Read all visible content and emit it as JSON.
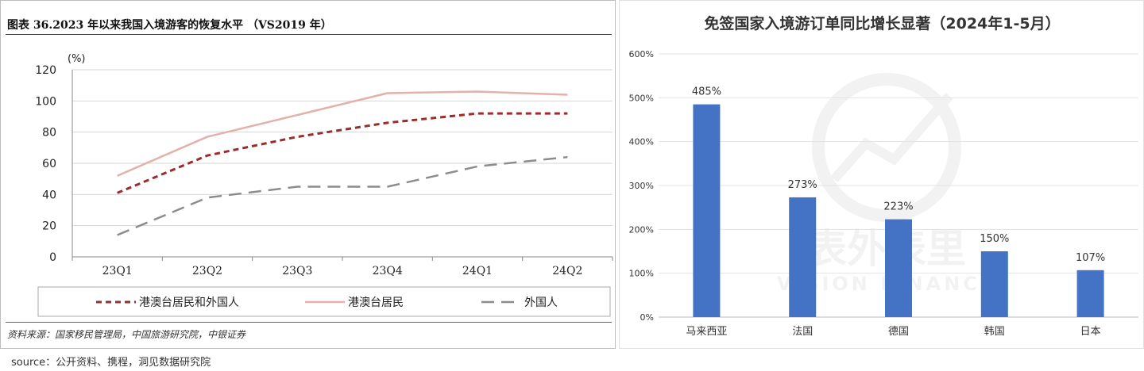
{
  "left": {
    "title": "图表 36.2023 年以来我国入境游客的恢复水平 （VS2019 年）",
    "source": "资料来源：国家移民管理局，中国旅游研究院，中银证券"
  },
  "right": {
    "title": "免签国家入境游订单同比增长显著（2024年1-5月）",
    "watermark_cn": "表外表里",
    "watermark_en": "VISION FINANCE"
  },
  "footer": {
    "source": "source：公开资料、携程，洞见数据研究院"
  },
  "chart_data": [
    {
      "type": "line",
      "ylabel": "(%)",
      "ylim": [
        0,
        120
      ],
      "yticks": [
        0,
        20,
        40,
        60,
        80,
        100,
        120
      ],
      "categories": [
        "23Q1",
        "23Q2",
        "23Q3",
        "23Q4",
        "24Q1",
        "24Q2"
      ],
      "legend_position": "bottom",
      "grid": true,
      "series": [
        {
          "name": "港澳台居民和外国人",
          "values": [
            41,
            65,
            77,
            86,
            92,
            92
          ],
          "color": "#9b2c2c",
          "style": "dashed-bold"
        },
        {
          "name": "港澳台居民",
          "values": [
            52,
            77,
            91,
            105,
            106,
            104
          ],
          "color": "#e3b0aa",
          "style": "solid"
        },
        {
          "name": "外国人",
          "values": [
            14,
            38,
            45,
            45,
            58,
            64
          ],
          "color": "#8c8c8c",
          "style": "long-dash"
        }
      ]
    },
    {
      "type": "bar",
      "ylim": [
        0,
        600
      ],
      "yticks": [
        "0%",
        "100%",
        "200%",
        "300%",
        "400%",
        "500%",
        "600%"
      ],
      "categories": [
        "马来西亚",
        "法国",
        "德国",
        "韩国",
        "日本"
      ],
      "values": [
        485,
        273,
        223,
        150,
        107
      ],
      "data_labels": [
        "485%",
        "273%",
        "223%",
        "150%",
        "107%"
      ],
      "color": "#4472c4",
      "grid": true
    }
  ]
}
